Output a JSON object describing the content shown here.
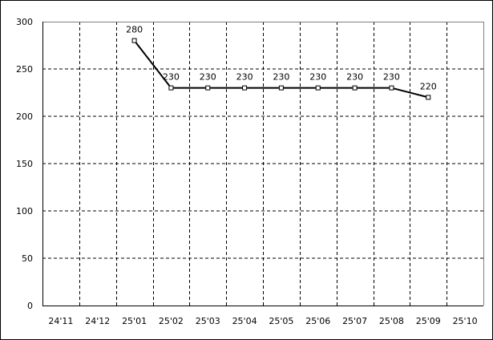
{
  "chart_data": {
    "type": "line",
    "title": "",
    "xlabel": "",
    "ylabel": "",
    "categories": [
      "24'11",
      "24'12",
      "25'01",
      "25'02",
      "25'03",
      "25'04",
      "25'05",
      "25'06",
      "25'07",
      "25'08",
      "25'09",
      "25'10"
    ],
    "series": [
      {
        "values": [
          null,
          null,
          280,
          230,
          230,
          230,
          230,
          230,
          230,
          230,
          220,
          null
        ],
        "color": "#000000",
        "marker": "square"
      }
    ],
    "data_labels": true,
    "ylim": [
      0,
      300
    ],
    "yticks": [
      0,
      50,
      100,
      150,
      200,
      250,
      300
    ],
    "grid": "dashed",
    "legend": "none"
  }
}
